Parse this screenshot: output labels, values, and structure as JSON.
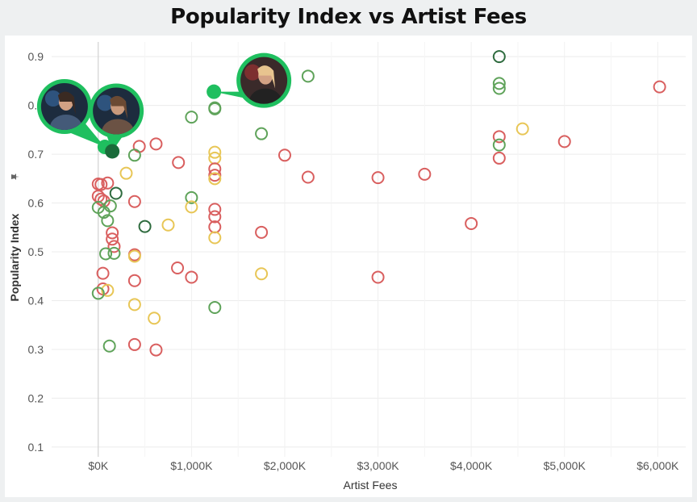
{
  "title": "Popularity Index vs Artist Fees",
  "chart_data": {
    "type": "scatter",
    "title": "Popularity Index vs Artist Fees",
    "xlabel": "Artist Fees",
    "ylabel": "Popularity Index",
    "ylabel_icon": "pin-icon",
    "xlim": [
      -500,
      6300
    ],
    "ylim": [
      0.08,
      0.93
    ],
    "x_ticks": [
      0,
      1000,
      2000,
      3000,
      4000,
      5000,
      6000
    ],
    "x_tick_labels": [
      "$0K",
      "$1,000K",
      "$2,000K",
      "$3,000K",
      "$4,000K",
      "$5,000K",
      "$6,000K"
    ],
    "y_ticks": [
      0.1,
      0.2,
      0.3,
      0.4,
      0.5,
      0.6,
      0.7,
      0.8,
      0.9
    ],
    "y_tick_labels": [
      "0.1",
      "0.2",
      "0.3",
      "0.4",
      "0.5",
      "0.6",
      "0.7",
      "0.8",
      "0.9"
    ],
    "grid": true,
    "colors": {
      "red": "#d95f5f",
      "yellow": "#e8c656",
      "green": "#5fa35a",
      "darkgreen": "#2e6b3e",
      "highlight": "#1fbf5f"
    },
    "points": [
      {
        "x": 4300,
        "y": 0.9,
        "c": "darkgreen"
      },
      {
        "x": 4300,
        "y": 0.845,
        "c": "green"
      },
      {
        "x": 4300,
        "y": 0.835,
        "c": "green"
      },
      {
        "x": 6020,
        "y": 0.838,
        "c": "red"
      },
      {
        "x": 2250,
        "y": 0.86,
        "c": "green"
      },
      {
        "x": 1250,
        "y": 0.795,
        "c": "green"
      },
      {
        "x": 1250,
        "y": 0.793,
        "c": "green"
      },
      {
        "x": 1000,
        "y": 0.776,
        "c": "green"
      },
      {
        "x": 1750,
        "y": 0.742,
        "c": "green"
      },
      {
        "x": 4550,
        "y": 0.752,
        "c": "yellow"
      },
      {
        "x": 4300,
        "y": 0.736,
        "c": "red"
      },
      {
        "x": 4300,
        "y": 0.719,
        "c": "green"
      },
      {
        "x": 5000,
        "y": 0.726,
        "c": "red"
      },
      {
        "x": 4300,
        "y": 0.692,
        "c": "red"
      },
      {
        "x": 620,
        "y": 0.721,
        "c": "red"
      },
      {
        "x": 440,
        "y": 0.716,
        "c": "red"
      },
      {
        "x": 390,
        "y": 0.698,
        "c": "green"
      },
      {
        "x": 1250,
        "y": 0.704,
        "c": "yellow"
      },
      {
        "x": 1250,
        "y": 0.692,
        "c": "yellow"
      },
      {
        "x": 2000,
        "y": 0.698,
        "c": "red"
      },
      {
        "x": 860,
        "y": 0.683,
        "c": "red"
      },
      {
        "x": 1250,
        "y": 0.67,
        "c": "red"
      },
      {
        "x": 1250,
        "y": 0.657,
        "c": "red"
      },
      {
        "x": 1250,
        "y": 0.65,
        "c": "yellow"
      },
      {
        "x": 2250,
        "y": 0.653,
        "c": "red"
      },
      {
        "x": 3000,
        "y": 0.652,
        "c": "red"
      },
      {
        "x": 3500,
        "y": 0.659,
        "c": "red"
      },
      {
        "x": 300,
        "y": 0.661,
        "c": "yellow"
      },
      {
        "x": 0,
        "y": 0.639,
        "c": "red"
      },
      {
        "x": 30,
        "y": 0.638,
        "c": "red"
      },
      {
        "x": 100,
        "y": 0.641,
        "c": "red"
      },
      {
        "x": 0,
        "y": 0.614,
        "c": "red"
      },
      {
        "x": 30,
        "y": 0.608,
        "c": "red"
      },
      {
        "x": 60,
        "y": 0.604,
        "c": "red"
      },
      {
        "x": 190,
        "y": 0.62,
        "c": "darkgreen"
      },
      {
        "x": 390,
        "y": 0.603,
        "c": "red"
      },
      {
        "x": 1000,
        "y": 0.611,
        "c": "green"
      },
      {
        "x": 1000,
        "y": 0.592,
        "c": "yellow"
      },
      {
        "x": 0,
        "y": 0.591,
        "c": "green"
      },
      {
        "x": 130,
        "y": 0.594,
        "c": "green"
      },
      {
        "x": 60,
        "y": 0.581,
        "c": "green"
      },
      {
        "x": 100,
        "y": 0.564,
        "c": "green"
      },
      {
        "x": 1250,
        "y": 0.587,
        "c": "red"
      },
      {
        "x": 1250,
        "y": 0.572,
        "c": "red"
      },
      {
        "x": 1250,
        "y": 0.551,
        "c": "red"
      },
      {
        "x": 500,
        "y": 0.552,
        "c": "darkgreen"
      },
      {
        "x": 750,
        "y": 0.555,
        "c": "yellow"
      },
      {
        "x": 4000,
        "y": 0.558,
        "c": "red"
      },
      {
        "x": 150,
        "y": 0.539,
        "c": "red"
      },
      {
        "x": 150,
        "y": 0.526,
        "c": "red"
      },
      {
        "x": 1250,
        "y": 0.529,
        "c": "yellow"
      },
      {
        "x": 1750,
        "y": 0.54,
        "c": "red"
      },
      {
        "x": 170,
        "y": 0.511,
        "c": "red"
      },
      {
        "x": 80,
        "y": 0.496,
        "c": "green"
      },
      {
        "x": 170,
        "y": 0.497,
        "c": "green"
      },
      {
        "x": 390,
        "y": 0.494,
        "c": "red"
      },
      {
        "x": 390,
        "y": 0.491,
        "c": "yellow"
      },
      {
        "x": 850,
        "y": 0.467,
        "c": "red"
      },
      {
        "x": 1000,
        "y": 0.448,
        "c": "red"
      },
      {
        "x": 1750,
        "y": 0.455,
        "c": "yellow"
      },
      {
        "x": 3000,
        "y": 0.448,
        "c": "red"
      },
      {
        "x": 50,
        "y": 0.456,
        "c": "red"
      },
      {
        "x": 390,
        "y": 0.441,
        "c": "red"
      },
      {
        "x": 50,
        "y": 0.424,
        "c": "red"
      },
      {
        "x": 100,
        "y": 0.421,
        "c": "yellow"
      },
      {
        "x": 0,
        "y": 0.415,
        "c": "green"
      },
      {
        "x": 390,
        "y": 0.392,
        "c": "yellow"
      },
      {
        "x": 1250,
        "y": 0.386,
        "c": "green"
      },
      {
        "x": 600,
        "y": 0.364,
        "c": "yellow"
      },
      {
        "x": 120,
        "y": 0.307,
        "c": "green"
      },
      {
        "x": 390,
        "y": 0.31,
        "c": "red"
      },
      {
        "x": 620,
        "y": 0.299,
        "c": "red"
      }
    ],
    "highlights": [
      {
        "x": 70,
        "y": 0.715,
        "photo": "male-artist-photo",
        "pin": "left"
      },
      {
        "x": 150,
        "y": 0.706,
        "photo": "female-artist-photo",
        "pin": "left"
      },
      {
        "x": 1240,
        "y": 0.828,
        "photo": "performer-photo",
        "pin": "right"
      }
    ]
  }
}
